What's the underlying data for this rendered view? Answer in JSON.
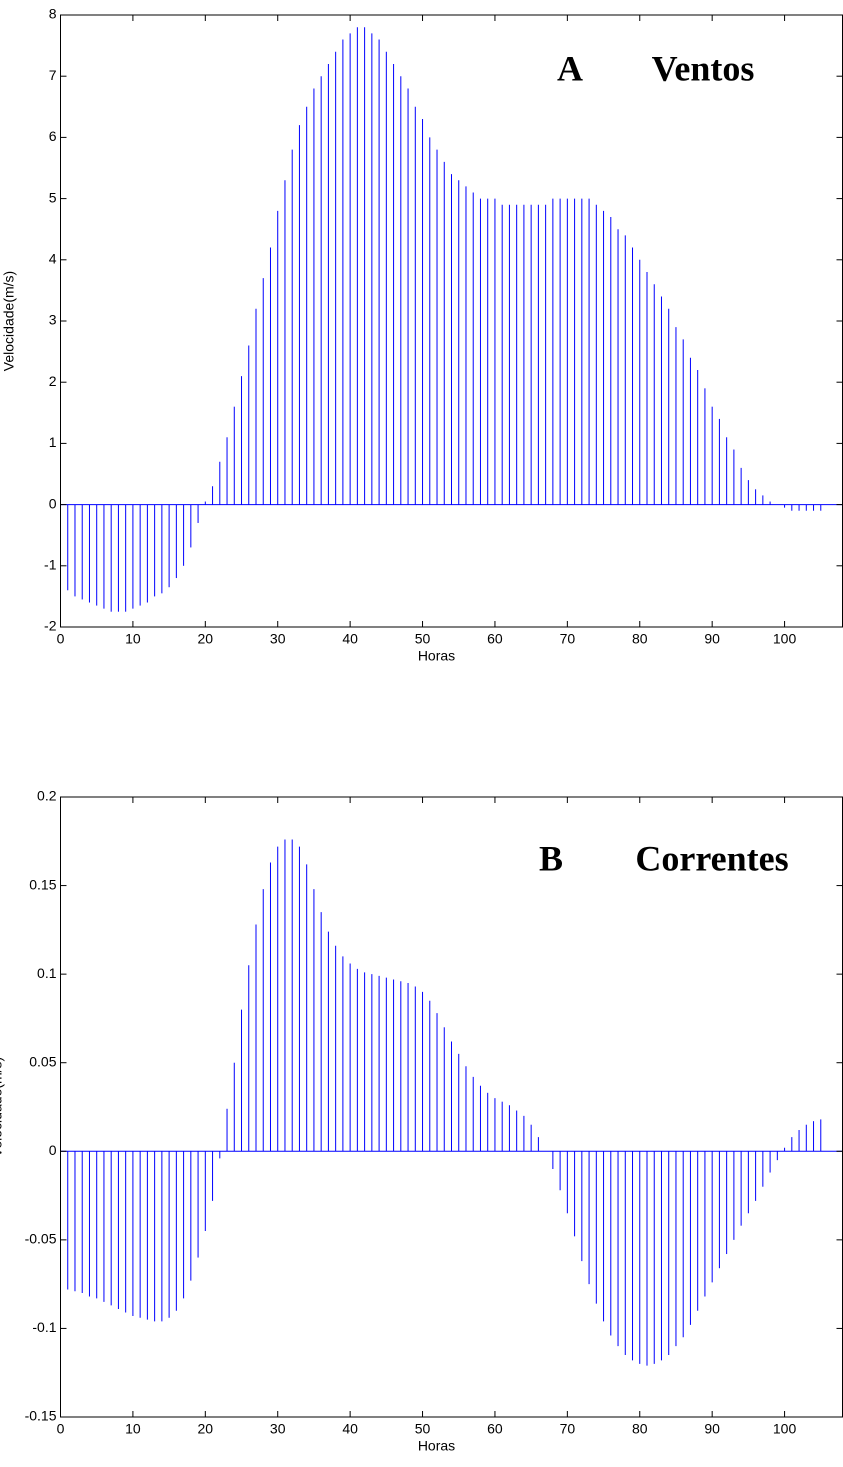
{
  "chart_data": [
    {
      "type": "stem",
      "ylabel": "Velocidade(m/s)",
      "xlabel": "Horas",
      "annotations": [
        "A",
        "Ventos"
      ],
      "color": "#0000ff",
      "xlim": [
        0,
        108
      ],
      "ylim": [
        -2,
        8
      ],
      "xticks": [
        0,
        10,
        20,
        30,
        40,
        50,
        60,
        70,
        80,
        90,
        100
      ],
      "yticks": [
        -2,
        -1,
        0,
        1,
        2,
        3,
        4,
        5,
        6,
        7,
        8
      ],
      "x": [
        0,
        1,
        2,
        3,
        4,
        5,
        6,
        7,
        8,
        9,
        10,
        11,
        12,
        13,
        14,
        15,
        16,
        17,
        18,
        19,
        20,
        21,
        22,
        23,
        24,
        25,
        26,
        27,
        28,
        29,
        30,
        31,
        32,
        33,
        34,
        35,
        36,
        37,
        38,
        39,
        40,
        41,
        42,
        43,
        44,
        45,
        46,
        47,
        48,
        49,
        50,
        51,
        52,
        53,
        54,
        55,
        56,
        57,
        58,
        59,
        60,
        61,
        62,
        63,
        64,
        65,
        66,
        67,
        68,
        69,
        70,
        71,
        72,
        73,
        74,
        75,
        76,
        77,
        78,
        79,
        80,
        81,
        82,
        83,
        84,
        85,
        86,
        87,
        88,
        89,
        90,
        91,
        92,
        93,
        94,
        95,
        96,
        97,
        98,
        99,
        100,
        101,
        102,
        103,
        104,
        105
      ],
      "values": [
        -1.2,
        -1.4,
        -1.5,
        -1.55,
        -1.6,
        -1.65,
        -1.7,
        -1.75,
        -1.75,
        -1.75,
        -1.7,
        -1.65,
        -1.6,
        -1.5,
        -1.45,
        -1.35,
        -1.2,
        -1.0,
        -0.7,
        -0.3,
        0.05,
        0.3,
        0.7,
        1.1,
        1.6,
        2.1,
        2.6,
        3.2,
        3.7,
        4.2,
        4.8,
        5.3,
        5.8,
        6.2,
        6.5,
        6.8,
        7.0,
        7.2,
        7.4,
        7.6,
        7.7,
        7.8,
        7.8,
        7.7,
        7.6,
        7.4,
        7.2,
        7.0,
        6.8,
        6.5,
        6.3,
        6.0,
        5.8,
        5.6,
        5.4,
        5.3,
        5.2,
        5.1,
        5.0,
        5.0,
        5.0,
        4.9,
        4.9,
        4.9,
        4.9,
        4.9,
        4.9,
        4.9,
        5.0,
        5.0,
        5.0,
        5.0,
        5.0,
        5.0,
        4.9,
        4.8,
        4.7,
        4.5,
        4.4,
        4.2,
        4.0,
        3.8,
        3.6,
        3.4,
        3.2,
        2.9,
        2.7,
        2.4,
        2.2,
        1.9,
        1.6,
        1.4,
        1.1,
        0.9,
        0.6,
        0.4,
        0.25,
        0.15,
        0.05,
        0,
        -0.05,
        -0.1,
        -0.1,
        -0.1,
        -0.1,
        -0.1
      ]
    },
    {
      "type": "stem",
      "ylabel": "Velocidade(m/s)",
      "xlabel": "Horas",
      "annotations": [
        "B",
        "Correntes"
      ],
      "color": "#0000ff",
      "xlim": [
        0,
        108
      ],
      "ylim": [
        -0.15,
        0.2
      ],
      "xticks": [
        0,
        10,
        20,
        30,
        40,
        50,
        60,
        70,
        80,
        90,
        100
      ],
      "yticks": [
        -0.15,
        -0.1,
        -0.05,
        0,
        0.05,
        0.1,
        0.15,
        0.2
      ],
      "x": [
        1,
        2,
        3,
        4,
        5,
        6,
        7,
        8,
        9,
        10,
        11,
        12,
        13,
        14,
        15,
        16,
        17,
        18,
        19,
        20,
        21,
        22,
        23,
        24,
        25,
        26,
        27,
        28,
        29,
        30,
        31,
        32,
        33,
        34,
        35,
        36,
        37,
        38,
        39,
        40,
        41,
        42,
        43,
        44,
        45,
        46,
        47,
        48,
        49,
        50,
        51,
        52,
        53,
        54,
        55,
        56,
        57,
        58,
        59,
        60,
        61,
        62,
        63,
        64,
        65,
        66,
        67,
        68,
        69,
        70,
        71,
        72,
        73,
        74,
        75,
        76,
        77,
        78,
        79,
        80,
        81,
        82,
        83,
        84,
        85,
        86,
        87,
        88,
        89,
        90,
        91,
        92,
        93,
        94,
        95,
        96,
        97,
        98,
        99,
        100,
        101,
        102,
        103,
        104,
        105
      ],
      "values": [
        -0.078,
        -0.079,
        -0.08,
        -0.082,
        -0.083,
        -0.085,
        -0.087,
        -0.089,
        -0.091,
        -0.093,
        -0.094,
        -0.095,
        -0.096,
        -0.096,
        -0.094,
        -0.09,
        -0.083,
        -0.073,
        -0.06,
        -0.045,
        -0.028,
        -0.004,
        0.024,
        0.05,
        0.08,
        0.105,
        0.128,
        0.148,
        0.163,
        0.172,
        0.176,
        0.176,
        0.172,
        0.162,
        0.148,
        0.135,
        0.124,
        0.116,
        0.11,
        0.106,
        0.103,
        0.101,
        0.1,
        0.099,
        0.098,
        0.097,
        0.096,
        0.095,
        0.093,
        0.09,
        0.085,
        0.078,
        0.07,
        0.062,
        0.055,
        0.048,
        0.042,
        0.037,
        0.033,
        0.03,
        0.028,
        0.026,
        0.023,
        0.02,
        0.015,
        0.008,
        0.0,
        -0.01,
        -0.022,
        -0.035,
        -0.048,
        -0.062,
        -0.075,
        -0.086,
        -0.096,
        -0.104,
        -0.11,
        -0.115,
        -0.118,
        -0.12,
        -0.121,
        -0.12,
        -0.118,
        -0.115,
        -0.11,
        -0.105,
        -0.098,
        -0.09,
        -0.082,
        -0.074,
        -0.066,
        -0.058,
        -0.05,
        -0.042,
        -0.035,
        -0.028,
        -0.02,
        -0.012,
        -0.005,
        0.002,
        0.008,
        0.012,
        0.015,
        0.017,
        0.018
      ]
    }
  ]
}
